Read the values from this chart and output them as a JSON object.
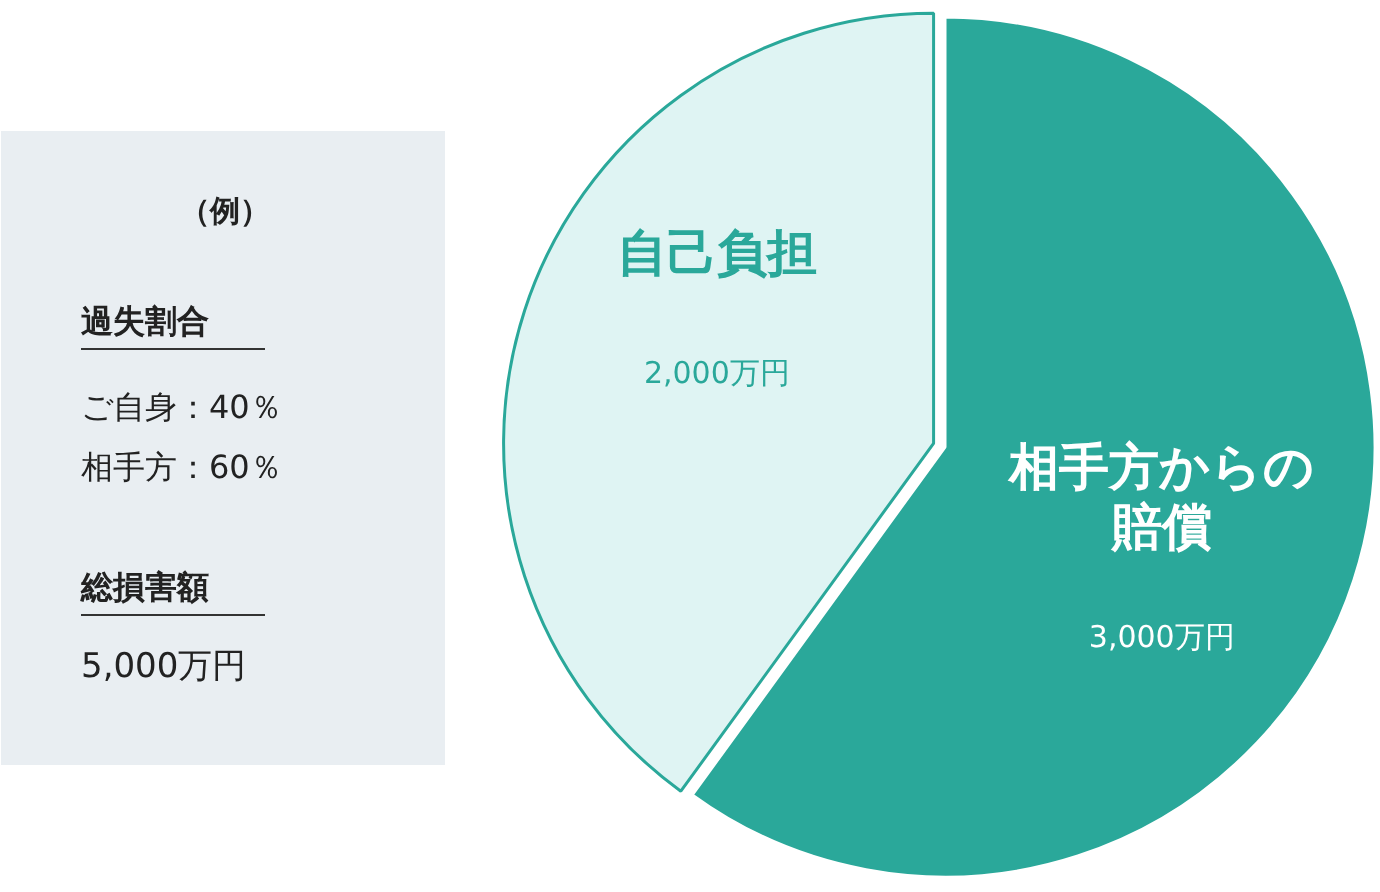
{
  "chart_data": {
    "type": "pie",
    "categories": [
      "自己負担",
      "相手方からの賠償"
    ],
    "values": [
      2000,
      3000
    ],
    "colors": [
      "#dff4f3",
      "#2aa89a"
    ],
    "value_labels": [
      "2,000万円",
      "3,000万円"
    ],
    "annotations": [
      "（例）",
      "過失割合",
      "ご自身：40％",
      "相手方：60％",
      "総損害額",
      "5,000万円"
    ]
  }
}
